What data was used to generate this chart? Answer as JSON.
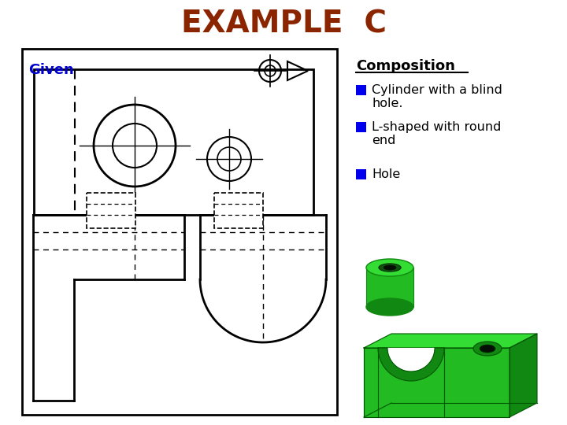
{
  "title": "EXAMPLE  C",
  "title_color": "#8B2500",
  "title_fontsize": 28,
  "given_text": "Given",
  "given_color": "#0000CC",
  "composition_title": "Composition",
  "composition_items": [
    "Cylinder with a blind\nhole.",
    "L-shaped with round\nend",
    "Hole"
  ],
  "bullet_color": "#0000EE",
  "green_light": "#33dd33",
  "green_mid": "#22bb22",
  "green_dark": "#118811",
  "background": "#ffffff"
}
